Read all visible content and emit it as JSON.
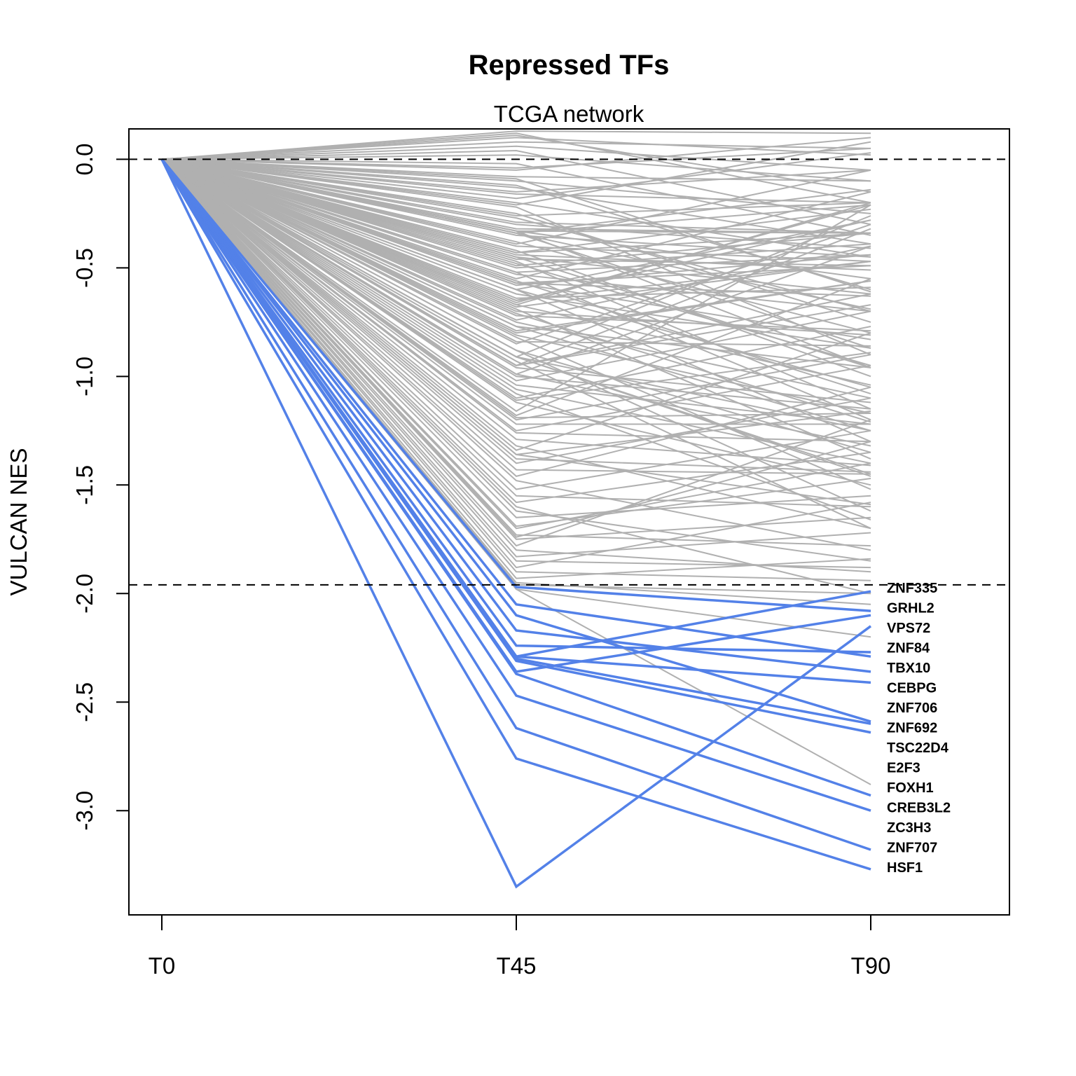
{
  "chart_data": {
    "type": "line",
    "title": "Repressed TFs",
    "subtitle": "TCGA network",
    "xlabel": "",
    "ylabel": "VULCAN NES",
    "categories": [
      "T0",
      "T45",
      "T90"
    ],
    "ylim": [
      -3.48,
      0.14
    ],
    "yticks": [
      0.0,
      -0.5,
      -1.0,
      -1.5,
      -2.0,
      -2.5,
      -3.0
    ],
    "ytick_labels": [
      "0.0",
      "-0.5",
      "-1.0",
      "-1.5",
      "-2.0",
      "-2.5",
      "-3.0"
    ],
    "grid": false,
    "threshold_lines": [
      0.0,
      -1.96
    ],
    "colors": {
      "highlight": "#5381e8",
      "background": "#b0b0b0",
      "threshold": "#000000"
    },
    "labels_at_T90": [
      "ZNF335",
      "GRHL2",
      "VPS72",
      "ZNF84",
      "TBX10",
      "CEBPG",
      "ZNF706",
      "ZNF692",
      "TSC22D4",
      "E2F3",
      "FOXH1",
      "CREB3L2",
      "ZC3H3",
      "ZNF707",
      "HSF1"
    ],
    "highlighted_series": [
      {
        "values": [
          0,
          -3.35,
          -2.15
        ]
      },
      {
        "values": [
          0,
          -2.76,
          -3.27
        ]
      },
      {
        "values": [
          0,
          -2.62,
          -3.18
        ]
      },
      {
        "values": [
          0,
          -2.47,
          -3.0
        ]
      },
      {
        "values": [
          0,
          -2.37,
          -2.93
        ]
      },
      {
        "values": [
          0,
          -2.36,
          -2.1
        ]
      },
      {
        "values": [
          0,
          -2.31,
          -2.64
        ]
      },
      {
        "values": [
          0,
          -2.3,
          -2.6
        ]
      },
      {
        "values": [
          0,
          -2.29,
          -1.99
        ]
      },
      {
        "values": [
          0,
          -2.29,
          -2.41
        ]
      },
      {
        "values": [
          0,
          -2.24,
          -2.27
        ]
      },
      {
        "values": [
          0,
          -2.17,
          -2.36
        ]
      },
      {
        "values": [
          0,
          -2.1,
          -2.59
        ]
      },
      {
        "values": [
          0,
          -2.05,
          -2.29
        ]
      },
      {
        "values": [
          0,
          -1.97,
          -2.08
        ]
      }
    ],
    "background_series": [
      {
        "values": [
          0,
          -1.2,
          -0.9
        ]
      },
      {
        "values": [
          0,
          -1.08,
          -1.66
        ]
      },
      {
        "values": [
          0,
          -0.96,
          -1.12
        ]
      },
      {
        "values": [
          0,
          -0.95,
          -0.62
        ]
      },
      {
        "values": [
          0,
          -1.0,
          -1.15
        ]
      },
      {
        "values": [
          0,
          -0.35,
          -0.45
        ]
      },
      {
        "values": [
          0,
          -0.68,
          -0.47
        ]
      },
      {
        "values": [
          0,
          -0.26,
          -0.2
        ]
      },
      {
        "values": [
          0,
          -0.88,
          -1.62
        ]
      },
      {
        "values": [
          0,
          -0.44,
          -0.51
        ]
      },
      {
        "values": [
          0,
          -0.33,
          -0.34
        ]
      },
      {
        "values": [
          0,
          -0.21,
          0.08
        ]
      },
      {
        "values": [
          0,
          -1.38,
          -1.44
        ]
      },
      {
        "values": [
          0,
          -1.43,
          -1.45
        ]
      },
      {
        "values": [
          0,
          -0.66,
          -0.21
        ]
      },
      {
        "values": [
          0,
          -0.99,
          -0.4
        ]
      },
      {
        "values": [
          0,
          -0.8,
          -0.56
        ]
      },
      {
        "values": [
          0,
          -1.69,
          -1.47
        ]
      },
      {
        "values": [
          0,
          -0.34,
          -0.21
        ]
      },
      {
        "values": [
          0,
          -0.65,
          -0.47
        ]
      },
      {
        "values": [
          0,
          -1.16,
          -0.21
        ]
      },
      {
        "values": [
          0,
          -0.77,
          -0.96
        ]
      },
      {
        "values": [
          0,
          -1.36,
          -1.59
        ]
      },
      {
        "values": [
          0,
          -1.19,
          -1.17
        ]
      },
      {
        "values": [
          0,
          -0.32,
          -0.34
        ]
      },
      {
        "values": [
          0,
          -0.95,
          -0.67
        ]
      },
      {
        "values": [
          0,
          -0.56,
          -1.08
        ]
      },
      {
        "values": [
          0,
          -0.49,
          -0.34
        ]
      },
      {
        "values": [
          0,
          -0.67,
          -0.2
        ]
      },
      {
        "values": [
          0,
          -1.36,
          -1.16
        ]
      },
      {
        "values": [
          0,
          -0.62,
          -0.87
        ]
      },
      {
        "values": [
          0,
          -0.71,
          -1.21
        ]
      },
      {
        "values": [
          0,
          -0.6,
          -1.3
        ]
      },
      {
        "values": [
          0,
          -1.26,
          -1.3
        ]
      },
      {
        "values": [
          0,
          -0.53,
          -0.7
        ]
      },
      {
        "values": [
          0,
          -0.34,
          -0.87
        ]
      },
      {
        "values": [
          0,
          -1.1,
          -0.77
        ]
      },
      {
        "values": [
          0,
          -0.67,
          -1.04
        ]
      },
      {
        "values": [
          0,
          -0.81,
          -1.17
        ]
      },
      {
        "values": [
          0,
          -0.91,
          -1.45
        ]
      },
      {
        "values": [
          0,
          -0.77,
          -1.25
        ]
      },
      {
        "values": [
          0,
          -0.52,
          -0.44
        ]
      },
      {
        "values": [
          0,
          -0.91,
          -1.46
        ]
      },
      {
        "values": [
          0,
          -0.99,
          -1.32
        ]
      },
      {
        "values": [
          0,
          -0.95,
          -0.32
        ]
      },
      {
        "values": [
          0,
          -0.65,
          -0.28
        ]
      },
      {
        "values": [
          0,
          -0.09,
          -0.61
        ]
      },
      {
        "values": [
          0,
          -0.15,
          -0.05
        ]
      },
      {
        "values": [
          0,
          -1.11,
          -0.89
        ]
      },
      {
        "values": [
          0,
          -1.04,
          -1.22
        ]
      },
      {
        "values": [
          0,
          -0.34,
          -0.14
        ]
      },
      {
        "values": [
          0,
          -0.43,
          -0.23
        ]
      },
      {
        "values": [
          0,
          -0.57,
          -0.83
        ]
      },
      {
        "values": [
          0,
          -0.46,
          -0.49
        ]
      },
      {
        "values": [
          0,
          -0.45,
          -0.96
        ]
      },
      {
        "values": [
          0,
          -0.57,
          -0.63
        ]
      },
      {
        "values": [
          0,
          -0.84,
          -0.86
        ]
      },
      {
        "values": [
          0,
          -0.16,
          -0.2
        ]
      },
      {
        "values": [
          0,
          -1.29,
          -1.41
        ]
      },
      {
        "values": [
          0,
          -0.5,
          -0.39
        ]
      },
      {
        "values": [
          0,
          -0.33,
          -0.55
        ]
      },
      {
        "values": [
          0,
          -0.33,
          -0.96
        ]
      },
      {
        "values": [
          0,
          -0.64,
          -0.59
        ]
      },
      {
        "values": [
          0,
          -0.57,
          -0.49
        ]
      },
      {
        "values": [
          0,
          -0.43,
          -0.34
        ]
      },
      {
        "values": [
          0,
          -0.13,
          -0.39
        ]
      },
      {
        "values": [
          0,
          -0.91,
          -1.25
        ]
      },
      {
        "values": [
          0,
          -0.79,
          -0.56
        ]
      },
      {
        "values": [
          0,
          -0.6,
          -0.28
        ]
      },
      {
        "values": [
          0,
          -0.72,
          -0.79
        ]
      },
      {
        "values": [
          0,
          -0.29,
          -0.34
        ]
      },
      {
        "values": [
          0,
          -0.58,
          -0.44
        ]
      },
      {
        "values": [
          0,
          -0.45,
          -0.62
        ]
      },
      {
        "values": [
          0,
          -0.7,
          -0.81
        ]
      },
      {
        "values": [
          0,
          -1.22,
          -1.22
        ]
      },
      {
        "values": [
          0,
          -0.91,
          -0.26
        ]
      },
      {
        "values": [
          0,
          -0.3,
          -0.41
        ]
      },
      {
        "values": [
          0,
          -0.4,
          -0.47
        ]
      },
      {
        "values": [
          0,
          -0.34,
          -0.69
        ]
      },
      {
        "values": [
          0,
          -0.08,
          -0.1
        ]
      },
      {
        "values": [
          0,
          0.02,
          -0.1
        ]
      },
      {
        "values": [
          0,
          0.1,
          0.02
        ]
      },
      {
        "values": [
          0,
          0.12,
          -0.2
        ]
      },
      {
        "values": [
          0,
          -0.02,
          -0.35
        ]
      },
      {
        "values": [
          0,
          -0.05,
          0.1
        ]
      },
      {
        "values": [
          0,
          0.13,
          0.12
        ]
      },
      {
        "values": [
          0,
          0.06,
          -0.05
        ]
      },
      {
        "values": [
          0,
          0.08,
          0.05
        ]
      },
      {
        "values": [
          0,
          -0.12,
          -0.6
        ]
      },
      {
        "values": [
          0,
          0.11,
          -0.15
        ]
      },
      {
        "values": [
          0,
          -0.2,
          -0.45
        ]
      },
      {
        "values": [
          0,
          -0.25,
          -0.75
        ]
      },
      {
        "values": [
          0,
          -0.18,
          0.03
        ]
      },
      {
        "values": [
          0,
          -0.38,
          -0.8
        ]
      },
      {
        "values": [
          0,
          -0.42,
          -1.0
        ]
      },
      {
        "values": [
          0,
          -0.48,
          -0.95
        ]
      },
      {
        "values": [
          0,
          -0.52,
          -1.2
        ]
      },
      {
        "values": [
          0,
          -0.6,
          -1.05
        ]
      },
      {
        "values": [
          0,
          -0.74,
          -0.4
        ]
      },
      {
        "values": [
          0,
          -0.85,
          -0.3
        ]
      },
      {
        "values": [
          0,
          -0.88,
          -1.35
        ]
      },
      {
        "values": [
          0,
          -1.02,
          -0.7
        ]
      },
      {
        "values": [
          0,
          -1.12,
          -1.5
        ]
      },
      {
        "values": [
          0,
          -1.25,
          -0.95
        ]
      },
      {
        "values": [
          0,
          -1.32,
          -1.7
        ]
      },
      {
        "values": [
          0,
          -1.4,
          -1.1
        ]
      },
      {
        "values": [
          0,
          -1.48,
          -1.8
        ]
      },
      {
        "values": [
          0,
          -1.52,
          -1.25
        ]
      },
      {
        "values": [
          0,
          -1.55,
          -1.6
        ]
      },
      {
        "values": [
          0,
          -1.58,
          -1.35
        ]
      },
      {
        "values": [
          0,
          -1.62,
          -1.85
        ]
      },
      {
        "values": [
          0,
          -1.65,
          -1.55
        ]
      },
      {
        "values": [
          0,
          -1.7,
          -1.4
        ]
      },
      {
        "values": [
          0,
          -1.73,
          -1.78
        ]
      },
      {
        "values": [
          0,
          -1.75,
          -1.65
        ]
      },
      {
        "values": [
          0,
          -1.78,
          -1.2
        ]
      },
      {
        "values": [
          0,
          -1.8,
          -1.9
        ]
      },
      {
        "values": [
          0,
          -1.83,
          -1.72
        ]
      },
      {
        "values": [
          0,
          -1.85,
          -1.88
        ]
      },
      {
        "values": [
          0,
          -1.88,
          -1.58
        ]
      },
      {
        "values": [
          0,
          -1.9,
          -1.94
        ]
      },
      {
        "values": [
          0,
          -1.93,
          -1.84
        ]
      },
      {
        "values": [
          0,
          -1.95,
          -2.05
        ]
      },
      {
        "values": [
          0,
          -1.98,
          -2.2
        ]
      },
      {
        "values": [
          0,
          -1.98,
          -2.88
        ]
      },
      {
        "values": [
          0,
          -1.96,
          -2.0
        ]
      },
      {
        "values": [
          0,
          -1.6,
          -2.0
        ]
      },
      {
        "values": [
          0,
          -1.74,
          -1.3
        ]
      },
      {
        "values": [
          0,
          -1.46,
          -1.05
        ]
      },
      {
        "values": [
          0,
          -1.34,
          -0.8
        ]
      },
      {
        "values": [
          0,
          -1.18,
          -0.55
        ]
      },
      {
        "values": [
          0,
          -1.06,
          -1.4
        ]
      },
      {
        "values": [
          0,
          -0.93,
          -1.7
        ]
      },
      {
        "values": [
          0,
          -0.82,
          -1.52
        ]
      },
      {
        "values": [
          0,
          -0.75,
          -1.1
        ]
      },
      {
        "values": [
          0,
          -0.69,
          -1.38
        ]
      },
      {
        "values": [
          0,
          -0.55,
          -0.15
        ]
      },
      {
        "values": [
          0,
          -0.47,
          -1.15
        ]
      },
      {
        "values": [
          0,
          -0.39,
          -0.05
        ]
      },
      {
        "values": [
          0,
          -0.27,
          -0.7
        ]
      },
      {
        "values": [
          0,
          -0.22,
          -0.9
        ]
      },
      {
        "values": [
          0,
          -0.1,
          -0.25
        ]
      },
      {
        "values": [
          0,
          -0.04,
          0.05
        ]
      },
      {
        "values": [
          0,
          0.04,
          -0.3
        ]
      }
    ]
  }
}
